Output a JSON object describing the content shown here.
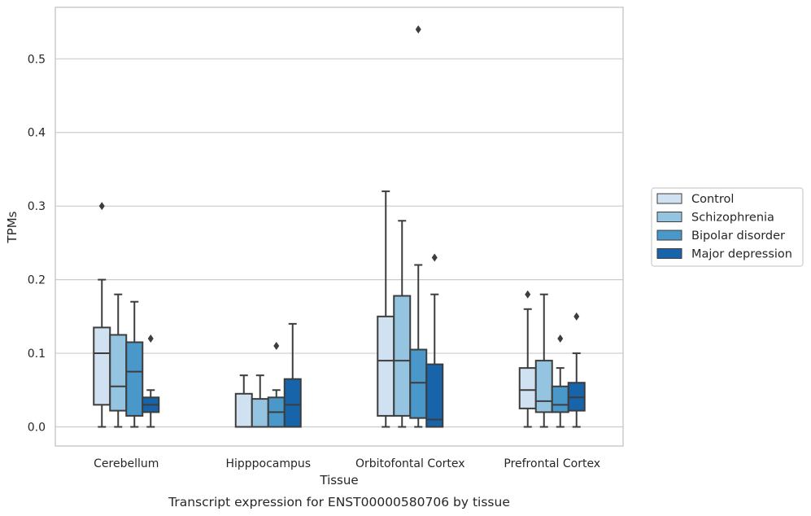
{
  "chart_data": {
    "type": "boxplot",
    "xlabel": "Tissue",
    "ylabel": "TPMs",
    "caption": "Transcript expression for ENST00000580706 by tissue",
    "ylim": [
      -0.026,
      0.57
    ],
    "yticks": [
      "0.0",
      "0.1",
      "0.2",
      "0.3",
      "0.4",
      "0.5"
    ],
    "grid": true,
    "legend_position": "right",
    "categories": [
      "Cerebellum",
      "Hipppocampus",
      "Orbitofontal Cortex",
      "Prefrontal Cortex"
    ],
    "series": [
      {
        "name": "Control",
        "color": "#d0e1f2",
        "boxes": [
          {
            "whislo": 0.0,
            "q1": 0.03,
            "med": 0.1,
            "q3": 0.135,
            "whishi": 0.2,
            "fliers": [
              0.3
            ]
          },
          {
            "whislo": 0.0,
            "q1": 0.0,
            "med": 0.0,
            "q3": 0.045,
            "whishi": 0.07,
            "fliers": []
          },
          {
            "whislo": 0.0,
            "q1": 0.015,
            "med": 0.09,
            "q3": 0.15,
            "whishi": 0.32,
            "fliers": []
          },
          {
            "whislo": 0.0,
            "q1": 0.025,
            "med": 0.05,
            "q3": 0.08,
            "whishi": 0.16,
            "fliers": [
              0.18
            ]
          }
        ]
      },
      {
        "name": "Schizophrenia",
        "color": "#94c4df",
        "boxes": [
          {
            "whislo": 0.0,
            "q1": 0.022,
            "med": 0.055,
            "q3": 0.125,
            "whishi": 0.18,
            "fliers": []
          },
          {
            "whislo": 0.0,
            "q1": 0.0,
            "med": 0.0,
            "q3": 0.038,
            "whishi": 0.07,
            "fliers": []
          },
          {
            "whislo": 0.0,
            "q1": 0.015,
            "med": 0.09,
            "q3": 0.178,
            "whishi": 0.28,
            "fliers": []
          },
          {
            "whislo": 0.0,
            "q1": 0.02,
            "med": 0.035,
            "q3": 0.09,
            "whishi": 0.18,
            "fliers": []
          }
        ]
      },
      {
        "name": "Bipolar disorder",
        "color": "#4a98c9",
        "boxes": [
          {
            "whislo": 0.0,
            "q1": 0.015,
            "med": 0.075,
            "q3": 0.115,
            "whishi": 0.17,
            "fliers": []
          },
          {
            "whislo": 0.0,
            "q1": 0.0,
            "med": 0.02,
            "q3": 0.04,
            "whishi": 0.05,
            "fliers": [
              0.11
            ]
          },
          {
            "whislo": 0.0,
            "q1": 0.012,
            "med": 0.06,
            "q3": 0.105,
            "whishi": 0.22,
            "fliers": [
              0.54
            ]
          },
          {
            "whislo": 0.0,
            "q1": 0.02,
            "med": 0.03,
            "q3": 0.055,
            "whishi": 0.08,
            "fliers": [
              0.12
            ]
          }
        ]
      },
      {
        "name": "Major depression",
        "color": "#1764ab",
        "boxes": [
          {
            "whislo": 0.0,
            "q1": 0.02,
            "med": 0.03,
            "q3": 0.04,
            "whishi": 0.05,
            "fliers": [
              0.12
            ]
          },
          {
            "whislo": 0.0,
            "q1": 0.0,
            "med": 0.03,
            "q3": 0.065,
            "whishi": 0.14,
            "fliers": []
          },
          {
            "whislo": 0.0,
            "q1": 0.0,
            "med": 0.01,
            "q3": 0.085,
            "whishi": 0.18,
            "fliers": [
              0.23
            ]
          },
          {
            "whislo": 0.0,
            "q1": 0.022,
            "med": 0.04,
            "q3": 0.06,
            "whishi": 0.1,
            "fliers": [
              0.15
            ]
          }
        ]
      }
    ]
  }
}
